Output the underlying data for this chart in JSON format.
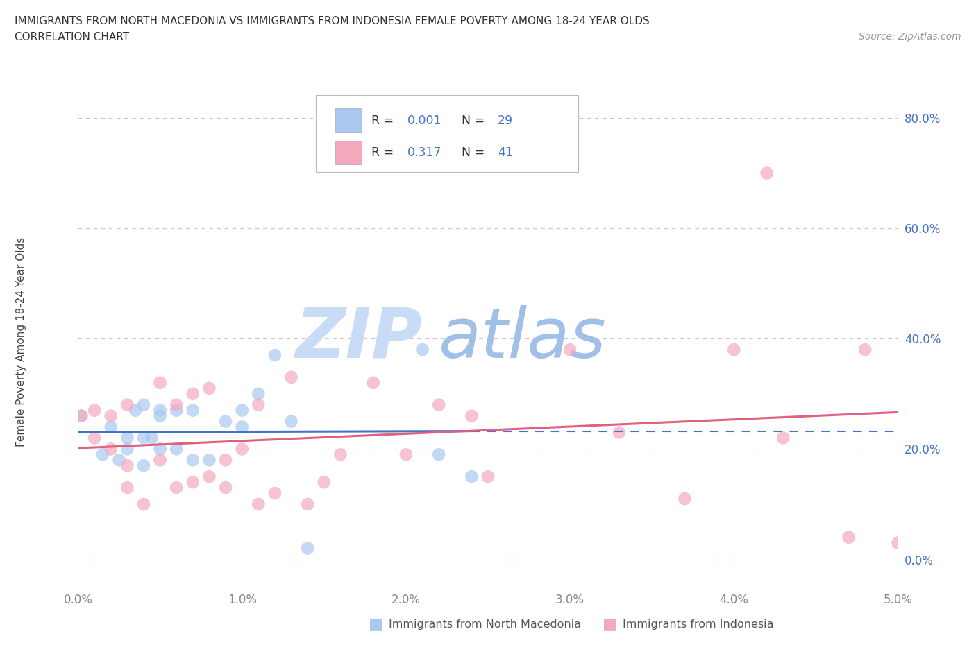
{
  "title_line1": "IMMIGRANTS FROM NORTH MACEDONIA VS IMMIGRANTS FROM INDONESIA FEMALE POVERTY AMONG 18-24 YEAR OLDS",
  "title_line2": "CORRELATION CHART",
  "source_text": "Source: ZipAtlas.com",
  "ylabel": "Female Poverty Among 18-24 Year Olds",
  "xlim": [
    0.0,
    0.05
  ],
  "ylim": [
    -0.05,
    0.85
  ],
  "xticks": [
    0.0,
    0.01,
    0.02,
    0.03,
    0.04,
    0.05
  ],
  "yticks": [
    0.0,
    0.2,
    0.4,
    0.6,
    0.8
  ],
  "ytick_labels": [
    "0.0%",
    "20.0%",
    "40.0%",
    "60.0%",
    "80.0%"
  ],
  "xtick_labels": [
    "0.0%",
    "1.0%",
    "2.0%",
    "3.0%",
    "4.0%",
    "5.0%"
  ],
  "watermark_zip": "ZIP",
  "watermark_atlas": "atlas",
  "legend_r1": "0.001",
  "legend_n1": "29",
  "legend_r2": "0.317",
  "legend_n2": "41",
  "color_blue": "#A8C8F0",
  "color_pink": "#F4A8BE",
  "color_blue_dark": "#4472C4",
  "color_pink_dark": "#E06080",
  "grid_color": "#C8C8C8",
  "bg_color": "#FFFFFF",
  "blue_scatter_x": [
    0.0002,
    0.0015,
    0.002,
    0.0025,
    0.003,
    0.003,
    0.0035,
    0.004,
    0.004,
    0.004,
    0.0045,
    0.005,
    0.005,
    0.005,
    0.006,
    0.006,
    0.007,
    0.007,
    0.008,
    0.009,
    0.01,
    0.01,
    0.011,
    0.012,
    0.013,
    0.014,
    0.021,
    0.022,
    0.024
  ],
  "blue_scatter_y": [
    0.26,
    0.19,
    0.24,
    0.18,
    0.2,
    0.22,
    0.27,
    0.17,
    0.22,
    0.28,
    0.22,
    0.2,
    0.26,
    0.27,
    0.2,
    0.27,
    0.18,
    0.27,
    0.18,
    0.25,
    0.27,
    0.24,
    0.3,
    0.37,
    0.25,
    0.02,
    0.38,
    0.19,
    0.15
  ],
  "pink_scatter_x": [
    0.0002,
    0.001,
    0.001,
    0.002,
    0.002,
    0.003,
    0.003,
    0.003,
    0.004,
    0.005,
    0.005,
    0.006,
    0.006,
    0.007,
    0.007,
    0.008,
    0.008,
    0.009,
    0.009,
    0.01,
    0.011,
    0.011,
    0.012,
    0.013,
    0.014,
    0.015,
    0.016,
    0.018,
    0.02,
    0.022,
    0.024,
    0.025,
    0.03,
    0.033,
    0.037,
    0.04,
    0.042,
    0.043,
    0.047,
    0.048,
    0.05
  ],
  "pink_scatter_y": [
    0.26,
    0.22,
    0.27,
    0.2,
    0.26,
    0.13,
    0.17,
    0.28,
    0.1,
    0.18,
    0.32,
    0.13,
    0.28,
    0.14,
    0.3,
    0.15,
    0.31,
    0.13,
    0.18,
    0.2,
    0.1,
    0.28,
    0.12,
    0.33,
    0.1,
    0.14,
    0.19,
    0.32,
    0.19,
    0.28,
    0.26,
    0.15,
    0.38,
    0.23,
    0.11,
    0.38,
    0.7,
    0.22,
    0.04,
    0.38,
    0.03
  ],
  "legend_label_blue": "Immigrants from North Macedonia",
  "legend_label_pink": "Immigrants from Indonesia"
}
